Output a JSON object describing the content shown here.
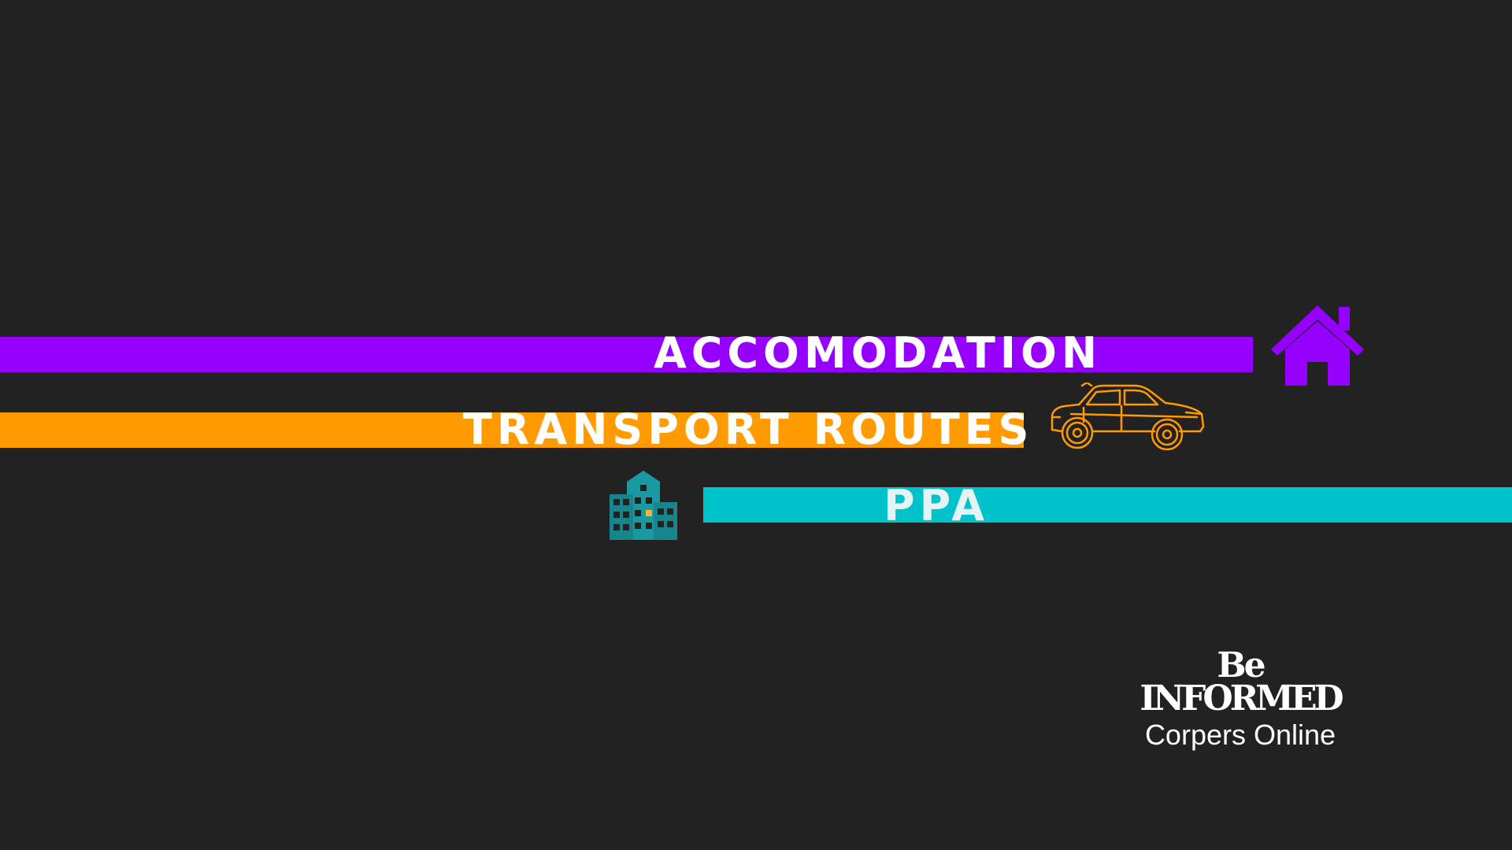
{
  "colors": {
    "background": "#222222",
    "purple": "#9600ff",
    "orange": "#ff9a00",
    "teal": "#00c2cb"
  },
  "items": [
    {
      "label": "ACCOMODATION",
      "icon": "house-icon",
      "color": "#9600ff"
    },
    {
      "label": "TRANSPORT ROUTES",
      "icon": "car-icon",
      "color": "#ff9a00"
    },
    {
      "label": "PPA",
      "icon": "building-icon",
      "color": "#00c2cb"
    }
  ],
  "brand": {
    "line1": "Be",
    "line2": "INFORMED",
    "tagline": "Corpers Online"
  }
}
